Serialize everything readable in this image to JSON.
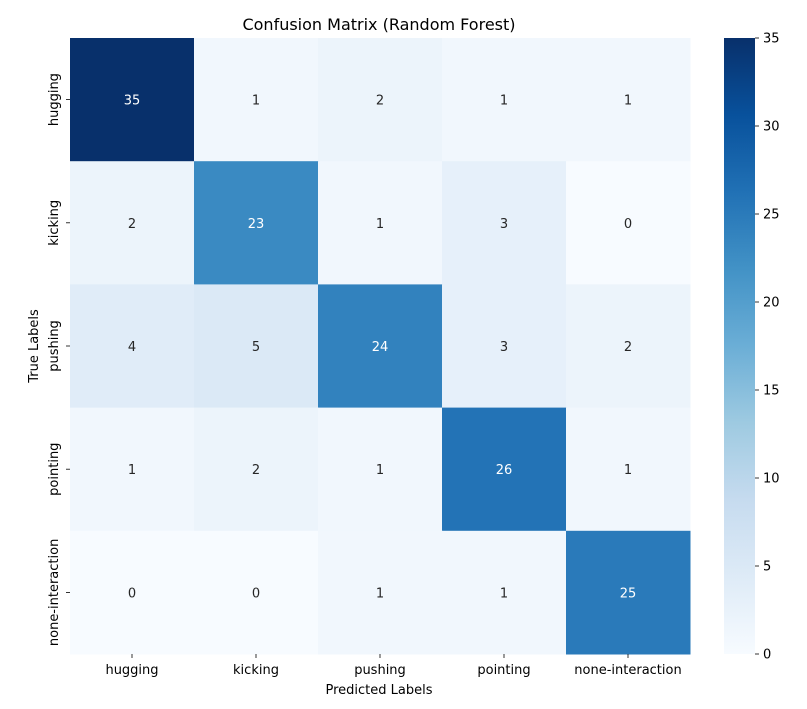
{
  "chart_data": {
    "type": "heatmap",
    "title": "Confusion Matrix (Random Forest)",
    "xlabel": "Predicted Labels",
    "ylabel": "True Labels",
    "x_categories": [
      "hugging",
      "kicking",
      "pushing",
      "pointing",
      "none-interaction"
    ],
    "y_categories": [
      "hugging",
      "kicking",
      "pushing",
      "pointing",
      "none-interaction"
    ],
    "values": [
      [
        35,
        1,
        2,
        1,
        1
      ],
      [
        2,
        23,
        1,
        3,
        0
      ],
      [
        4,
        5,
        24,
        3,
        2
      ],
      [
        1,
        2,
        1,
        26,
        1
      ],
      [
        0,
        0,
        1,
        1,
        25
      ]
    ],
    "colormap": "Blues",
    "colorbar": {
      "range": [
        0,
        35
      ],
      "ticks": [
        "0",
        "5",
        "10",
        "15",
        "20",
        "25",
        "30",
        "35"
      ]
    },
    "annotations": true,
    "grid": false
  }
}
